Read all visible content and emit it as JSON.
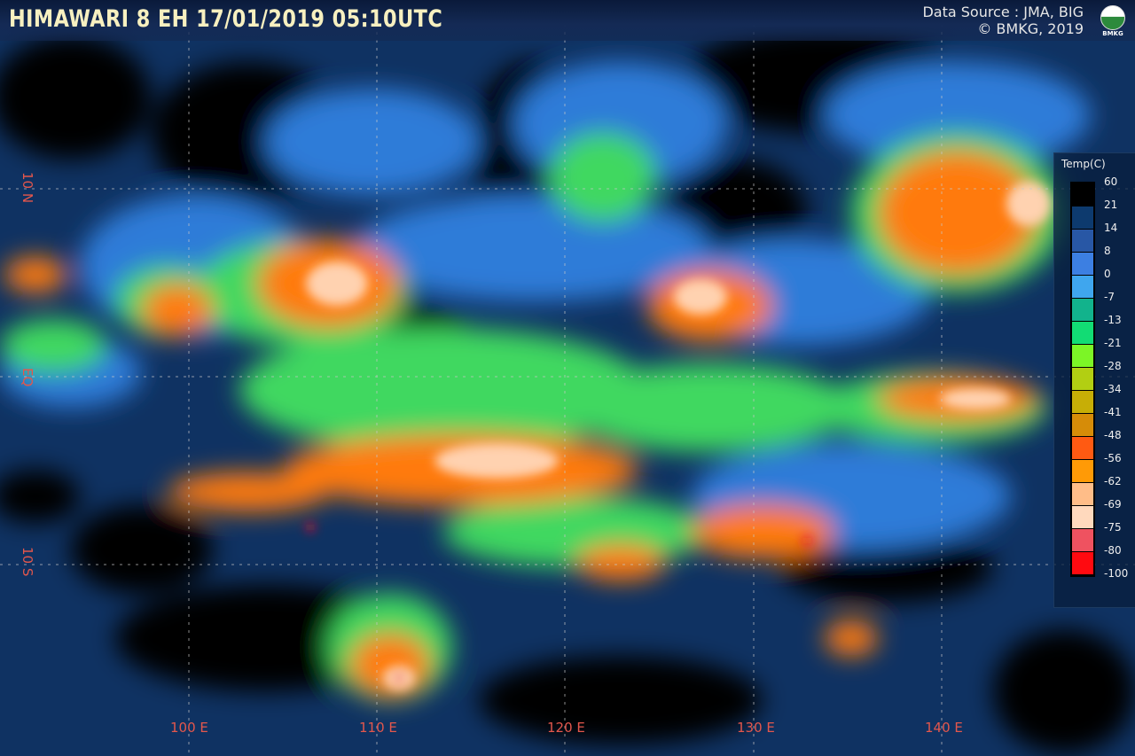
{
  "header": {
    "title": "HIMAWARI 8 EH  17/01/2019  05:10UTC",
    "source_line1": "Data Source : JMA, BIG",
    "source_line2": "© BMKG, 2019",
    "logo_text": "BMKG"
  },
  "axes": {
    "longitude_labels": [
      "100 E",
      "110 E",
      "120 E",
      "130 E",
      "140 E"
    ],
    "latitude_labels": [
      "10 N",
      "EQ",
      "10 S"
    ]
  },
  "legend": {
    "title": "Temp(C)",
    "labels": [
      "60",
      "21",
      "14",
      "8",
      "0",
      "-7",
      "-13",
      "-21",
      "-28",
      "-34",
      "-41",
      "-48",
      "-56",
      "-62",
      "-69",
      "-75",
      "-80",
      "-100"
    ],
    "colors": [
      "#000000",
      "#0d3a6e",
      "#2857a5",
      "#3c7fe2",
      "#3fa6ee",
      "#12b38c",
      "#12dc74",
      "#7cf526",
      "#b2cf12",
      "#c7ae06",
      "#d68c08",
      "#ff5a12",
      "#ff9a06",
      "#ffbd88",
      "#ffd9bd",
      "#ef5260",
      "#ff0a10"
    ]
  }
}
